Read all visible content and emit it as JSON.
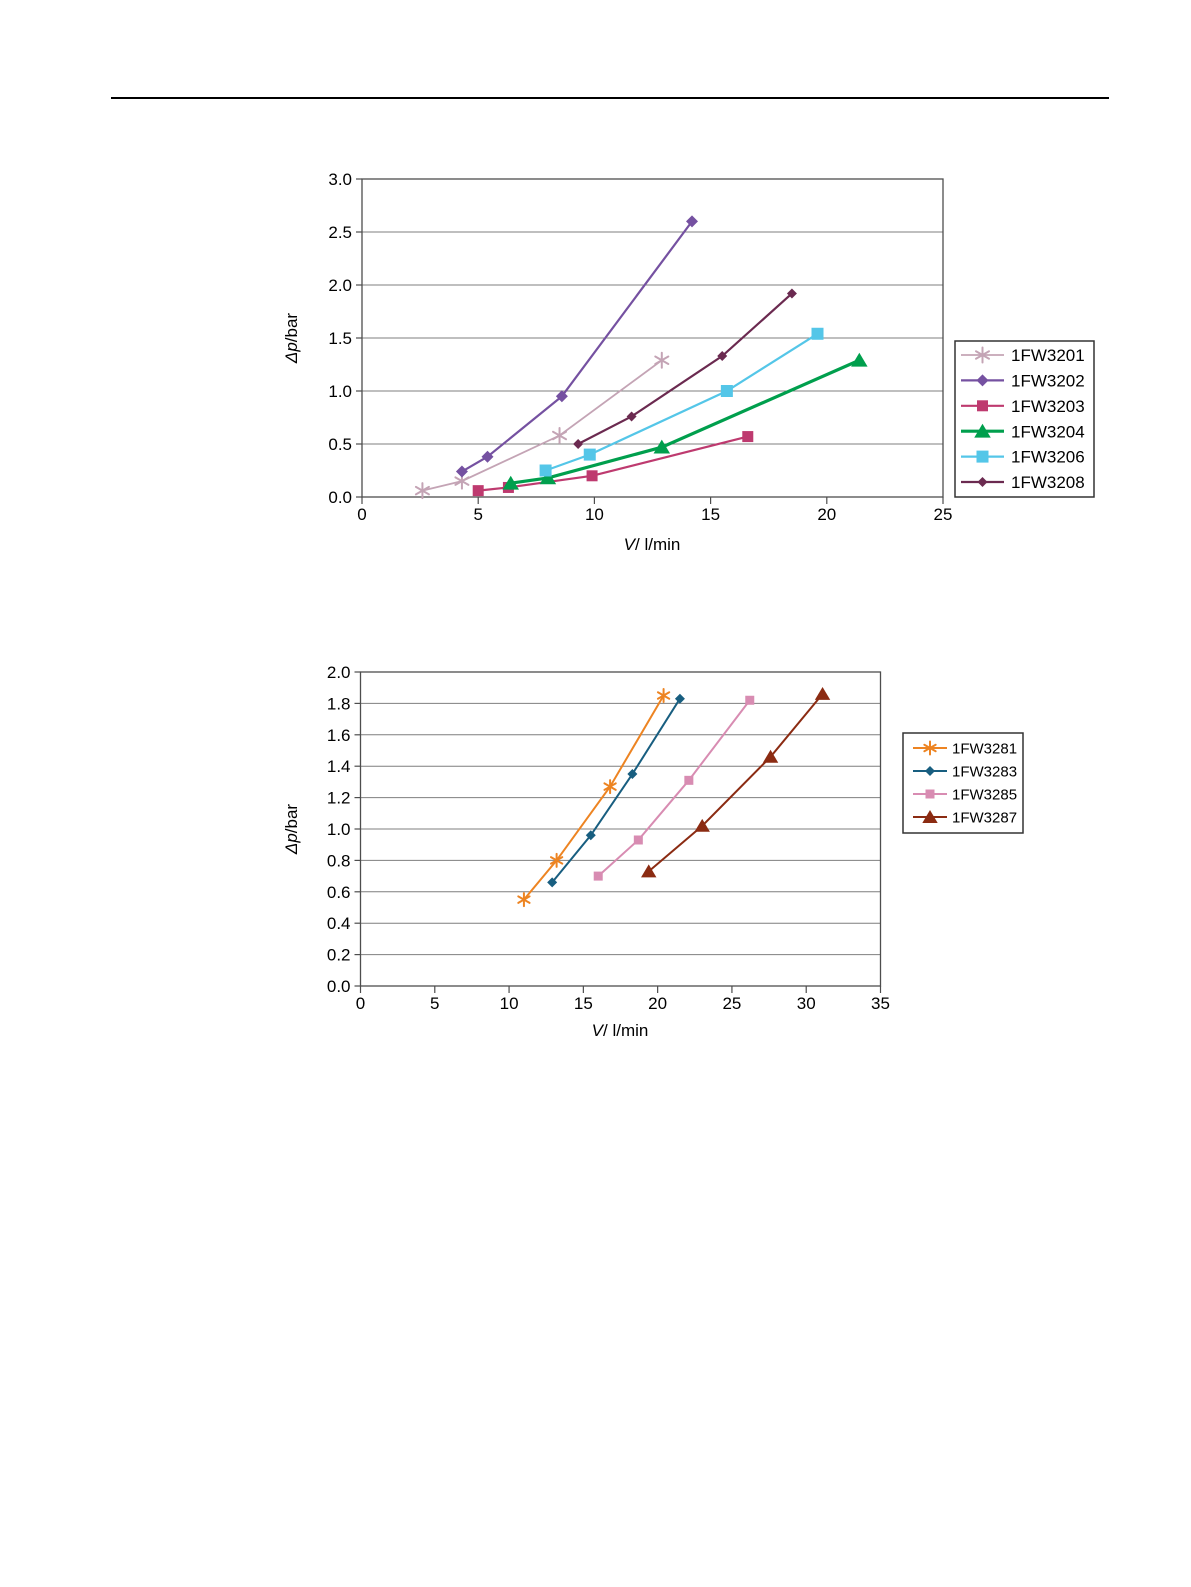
{
  "chart_data": [
    {
      "type": "line",
      "title": "",
      "xlabel": {
        "italic": "V",
        "rest": "/ l/min"
      },
      "ylabel": {
        "italic": "Δp",
        "rest": "/bar"
      },
      "xlim": [
        0,
        25
      ],
      "ylim": [
        0,
        3.0
      ],
      "xtick": 5,
      "ytick": 0.5,
      "grid": "horizontal",
      "legend_position": "right",
      "series": [
        {
          "name": "1FW3201",
          "color": "#C4A4B5",
          "marker": "asterisk",
          "msize": 7.5,
          "width": 1.8,
          "points": [
            [
              2.6,
              0.06
            ],
            [
              4.3,
              0.15
            ],
            [
              8.5,
              0.58
            ],
            [
              12.9,
              1.29
            ]
          ]
        },
        {
          "name": "1FW3202",
          "color": "#7551A1",
          "marker": "diamond",
          "msize": 6,
          "width": 2.2,
          "points": [
            [
              4.3,
              0.24
            ],
            [
              5.4,
              0.38
            ],
            [
              8.6,
              0.95
            ],
            [
              14.2,
              2.6
            ]
          ]
        },
        {
          "name": "1FW3203",
          "color": "#BE3A6F",
          "marker": "square",
          "msize": 5.5,
          "width": 2.2,
          "points": [
            [
              5.0,
              0.06
            ],
            [
              6.3,
              0.09
            ],
            [
              9.9,
              0.2
            ],
            [
              16.6,
              0.57
            ]
          ]
        },
        {
          "name": "1FW3204",
          "color": "#009F4D",
          "marker": "triangle",
          "msize": 7.5,
          "width": 3.2,
          "points": [
            [
              6.4,
              0.13
            ],
            [
              8.0,
              0.18
            ],
            [
              12.9,
              0.47
            ],
            [
              21.4,
              1.29
            ]
          ]
        },
        {
          "name": "1FW3206",
          "color": "#54C6E8",
          "marker": "square",
          "msize": 6,
          "width": 2.2,
          "points": [
            [
              7.9,
              0.25
            ],
            [
              9.8,
              0.4
            ],
            [
              15.7,
              1.0
            ],
            [
              19.6,
              1.54
            ]
          ]
        },
        {
          "name": "1FW3208",
          "color": "#6B2A50",
          "marker": "diamond",
          "msize": 5,
          "width": 2.2,
          "points": [
            [
              9.3,
              0.5
            ],
            [
              11.6,
              0.76
            ],
            [
              15.5,
              1.33
            ],
            [
              18.5,
              1.92
            ]
          ]
        }
      ]
    },
    {
      "type": "line",
      "title": "",
      "xlabel": {
        "italic": "V",
        "rest": "/ l/min"
      },
      "ylabel": {
        "italic": "Δp",
        "rest": "/bar"
      },
      "xlim": [
        0,
        35
      ],
      "ylim": [
        0,
        2.0
      ],
      "xtick": 5,
      "ytick": 0.2,
      "grid": "horizontal",
      "legend_position": "right",
      "series": [
        {
          "name": "1FW3281",
          "color": "#ED8422",
          "marker": "asterisk",
          "msize": 6.5,
          "width": 2,
          "points": [
            [
              11.0,
              0.55
            ],
            [
              13.2,
              0.8
            ],
            [
              16.8,
              1.27
            ],
            [
              20.4,
              1.85
            ]
          ]
        },
        {
          "name": "1FW3283",
          "color": "#185E80",
          "marker": "diamond",
          "msize": 5,
          "width": 2,
          "points": [
            [
              12.9,
              0.66
            ],
            [
              15.5,
              0.96
            ],
            [
              18.3,
              1.35
            ],
            [
              21.5,
              1.83
            ]
          ]
        },
        {
          "name": "1FW3285",
          "color": "#D88CB2",
          "marker": "square",
          "msize": 4.5,
          "width": 2,
          "points": [
            [
              16.0,
              0.7
            ],
            [
              18.7,
              0.93
            ],
            [
              22.1,
              1.31
            ],
            [
              26.2,
              1.82
            ]
          ]
        },
        {
          "name": "1FW3287",
          "color": "#8B2B12",
          "marker": "triangle",
          "msize": 7,
          "width": 2,
          "points": [
            [
              19.4,
              0.73
            ],
            [
              23.0,
              1.02
            ],
            [
              27.6,
              1.46
            ],
            [
              31.1,
              1.86
            ]
          ]
        }
      ]
    }
  ]
}
